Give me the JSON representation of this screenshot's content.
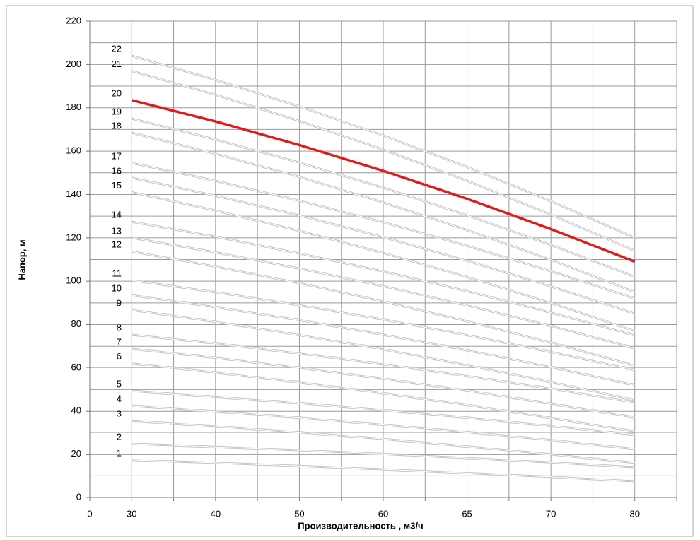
{
  "chart_data": {
    "type": "line",
    "xlabel": "Производительность , м3/ч",
    "ylabel": "Напор, м",
    "categories": [
      "0",
      "30",
      "40",
      "50",
      "60",
      "65",
      "70",
      "80"
    ],
    "ylim": [
      0,
      220
    ],
    "yticks": [
      0,
      20,
      40,
      60,
      80,
      100,
      120,
      140,
      160,
      180,
      200,
      220
    ],
    "grid": true,
    "series": [
      {
        "name": "1",
        "color": "#c4c4c4",
        "values": [
          null,
          17.3,
          16.0,
          14.6,
          13.0,
          11.3,
          9.5,
          7.5
        ]
      },
      {
        "name": "2",
        "color": "#c4c4c4",
        "values": [
          null,
          24.8,
          23.4,
          21.8,
          20.1,
          18.2,
          16.2,
          14.0
        ]
      },
      {
        "name": "3",
        "color": "#c4c4c4",
        "values": [
          null,
          35.5,
          32.9,
          30.1,
          27.0,
          23.6,
          19.9,
          16.0
        ]
      },
      {
        "name": "4",
        "color": "#c4c4c4",
        "values": [
          null,
          42.4,
          39.8,
          36.9,
          33.7,
          30.2,
          26.5,
          22.5
        ]
      },
      {
        "name": "5",
        "color": "#c4c4c4",
        "values": [
          null,
          49.2,
          46.5,
          43.6,
          40.4,
          36.9,
          33.1,
          29.0
        ]
      },
      {
        "name": "6",
        "color": "#c4c4c4",
        "values": [
          null,
          62.0,
          57.8,
          53.2,
          48.2,
          42.8,
          36.8,
          30.5
        ]
      },
      {
        "name": "7",
        "color": "#c4c4c4",
        "values": [
          null,
          68.8,
          64.6,
          60.0,
          54.9,
          49.4,
          43.4,
          37.0
        ]
      },
      {
        "name": "8",
        "color": "#c4c4c4",
        "values": [
          null,
          75.3,
          71.2,
          66.6,
          61.6,
          56.2,
          50.3,
          44.0
        ]
      },
      {
        "name": "9",
        "color": "#c4c4c4",
        "values": [
          null,
          86.7,
          81.2,
          75.1,
          68.5,
          61.2,
          53.4,
          45.0
        ]
      },
      {
        "name": "10",
        "color": "#c4c4c4",
        "values": [
          null,
          93.5,
          88.0,
          82.0,
          75.3,
          68.1,
          60.3,
          52.0
        ]
      },
      {
        "name": "11",
        "color": "#c4c4c4",
        "values": [
          null,
          100.4,
          94.9,
          88.9,
          82.3,
          75.1,
          67.3,
          59.0
        ]
      },
      {
        "name": "12",
        "color": "#c4c4c4",
        "values": [
          null,
          113.7,
          106.7,
          99.1,
          90.6,
          81.5,
          71.6,
          61.0
        ]
      },
      {
        "name": "13",
        "color": "#c4c4c4",
        "values": [
          null,
          120.0,
          113.3,
          105.8,
          97.7,
          88.8,
          79.3,
          69.0
        ]
      },
      {
        "name": "14",
        "color": "#c4c4c4",
        "values": [
          null,
          127.4,
          120.5,
          112.8,
          104.5,
          95.4,
          85.5,
          75.0
        ]
      },
      {
        "name": "15",
        "color": "#c4c4c4",
        "values": [
          null,
          141.0,
          132.6,
          123.2,
          113.0,
          101.9,
          89.9,
          77.0
        ]
      },
      {
        "name": "16",
        "color": "#c4c4c4",
        "values": [
          null,
          147.7,
          139.4,
          130.3,
          120.3,
          109.4,
          97.6,
          85.0
        ]
      },
      {
        "name": "17",
        "color": "#c4c4c4",
        "values": [
          null,
          154.5,
          146.3,
          137.1,
          127.2,
          116.3,
          104.6,
          92.0
        ]
      },
      {
        "name": "18",
        "color": "#c4c4c4",
        "values": [
          null,
          168.5,
          158.8,
          148.1,
          136.3,
          123.6,
          109.8,
          95.0
        ]
      },
      {
        "name": "19",
        "color": "#c4c4c4",
        "values": [
          null,
          175.0,
          165.4,
          154.7,
          143.1,
          130.4,
          116.7,
          102.0
        ]
      },
      {
        "name": "20",
        "color": "#e41a1a",
        "values": [
          null,
          183.5,
          173.7,
          162.8,
          150.9,
          138.0,
          124.0,
          109.0
        ]
      },
      {
        "name": "21",
        "color": "#c4c4c4",
        "values": [
          null,
          197.0,
          186.0,
          173.9,
          160.7,
          146.3,
          130.7,
          114.0
        ]
      },
      {
        "name": "22",
        "color": "#c4c4c4",
        "values": [
          null,
          204.0,
          192.9,
          180.6,
          167.2,
          152.7,
          136.9,
          120.0
        ]
      }
    ]
  }
}
